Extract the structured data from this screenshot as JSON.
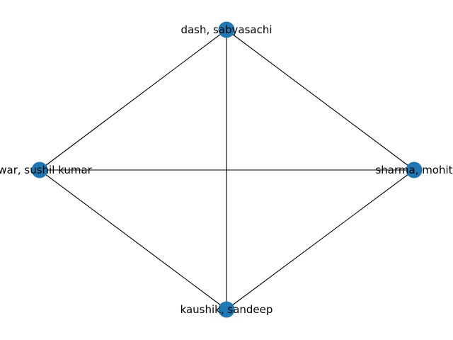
{
  "graph": {
    "node_color": "#1f77b4",
    "edge_color": "#000000",
    "nodes": [
      {
        "id": "n1",
        "label": "dash, sabyasachi"
      },
      {
        "id": "n2",
        "label": "sharma, mohit"
      },
      {
        "id": "n3",
        "label": "kaushik, sandeep"
      },
      {
        "id": "n4",
        "label": "tawar, sushil kumar"
      }
    ],
    "edges": [
      [
        "n1",
        "n2"
      ],
      [
        "n1",
        "n3"
      ],
      [
        "n1",
        "n4"
      ],
      [
        "n2",
        "n3"
      ],
      [
        "n2",
        "n4"
      ],
      [
        "n3",
        "n4"
      ]
    ]
  }
}
